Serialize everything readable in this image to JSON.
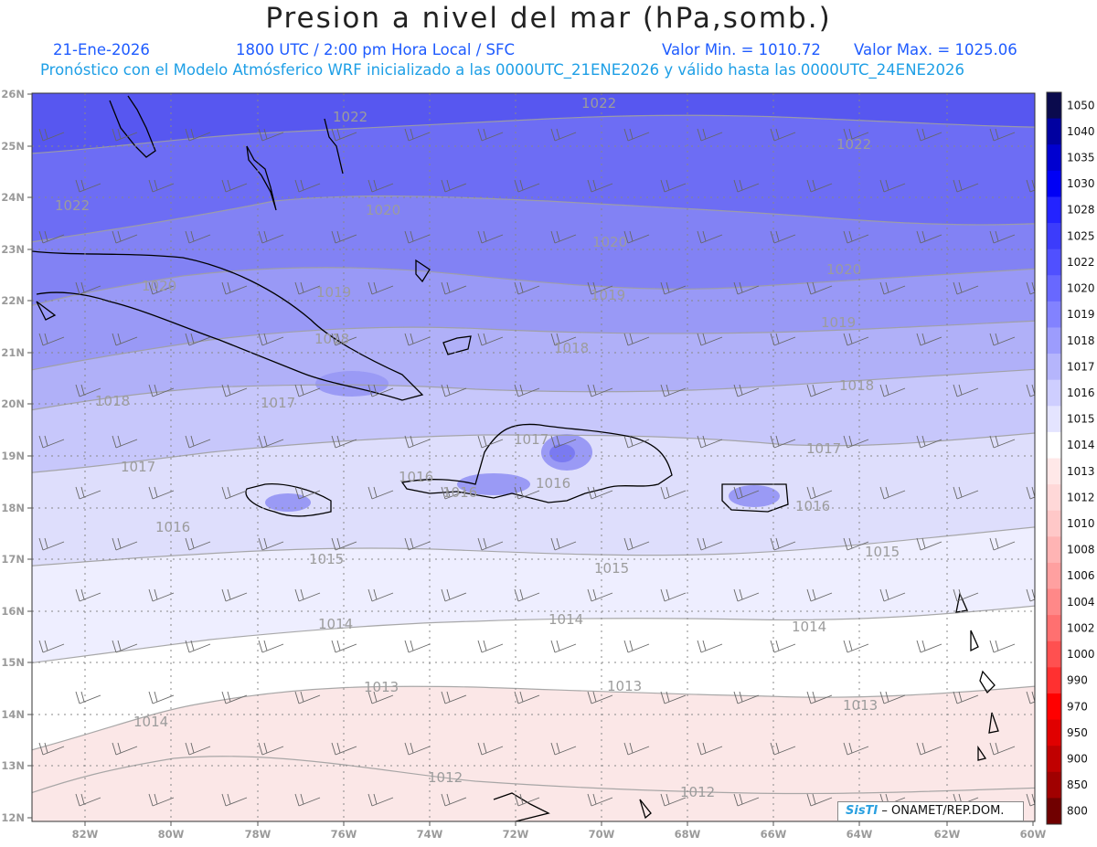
{
  "header": {
    "title": "Presion a nivel del mar (hPa,somb.)",
    "date": "21-Ene-2026",
    "time": "1800 UTC / 2:00 pm Hora Local / SFC",
    "min_label": "Valor Min. = 1010.72",
    "max_label": "Valor Max. = 1025.06",
    "model_info": "Pronóstico con el Modelo Atmósferico WRF inicializado a las 0000UTC_21ENE2026 y válido hasta las 0000UTC_24ENE2026"
  },
  "map": {
    "lat_labels": [
      "26N",
      "25N",
      "24N",
      "23N",
      "22N",
      "21N",
      "20N",
      "19N",
      "18N",
      "17N",
      "16N",
      "15N",
      "14N",
      "13N",
      "12N"
    ],
    "lon_labels": [
      "82W",
      "80W",
      "78W",
      "76W",
      "74W",
      "72W",
      "70W",
      "68W",
      "66W",
      "64W",
      "62W",
      "60W"
    ],
    "isobar_labels": [
      "1022",
      "1022",
      "1022",
      "1022",
      "1020",
      "1020",
      "1020",
      "1020",
      "1019",
      "1019",
      "1019",
      "1018",
      "1018",
      "1018",
      "1018",
      "1017",
      "1017",
      "1017",
      "1017",
      "1016",
      "1016",
      "1016",
      "1016",
      "1016",
      "1015",
      "1015",
      "1015",
      "1014",
      "1014",
      "1014",
      "1014",
      "1013",
      "1013",
      "1013",
      "1012",
      "1012"
    ]
  },
  "colorbar": {
    "levels": [
      "1050",
      "1040",
      "1035",
      "1030",
      "1028",
      "1025",
      "1022",
      "1020",
      "1019",
      "1018",
      "1017",
      "1016",
      "1015",
      "1014",
      "1013",
      "1012",
      "1010",
      "1008",
      "1006",
      "1004",
      "1002",
      "1000",
      "990",
      "970",
      "950",
      "900",
      "850",
      "800"
    ],
    "colors": [
      "#0a0a4d",
      "#0000a0",
      "#0000d0",
      "#0000f5",
      "#2323ff",
      "#3c3cfb",
      "#5050ff",
      "#6868ff",
      "#8282ff",
      "#9c9cfd",
      "#b5b5fc",
      "#ceceff",
      "#e4e4ff",
      "#ffffff",
      "#ffe8e8",
      "#ffd8d8",
      "#ffc8c8",
      "#ffb4b4",
      "#ffa0a0",
      "#ff8888",
      "#ff7070",
      "#ff5050",
      "#ff3030",
      "#ff0000",
      "#e00000",
      "#c00000",
      "#a00000",
      "#700000"
    ]
  },
  "credit": {
    "brand": "SisTI",
    "text": "– ONAMET/REP.DOM."
  }
}
